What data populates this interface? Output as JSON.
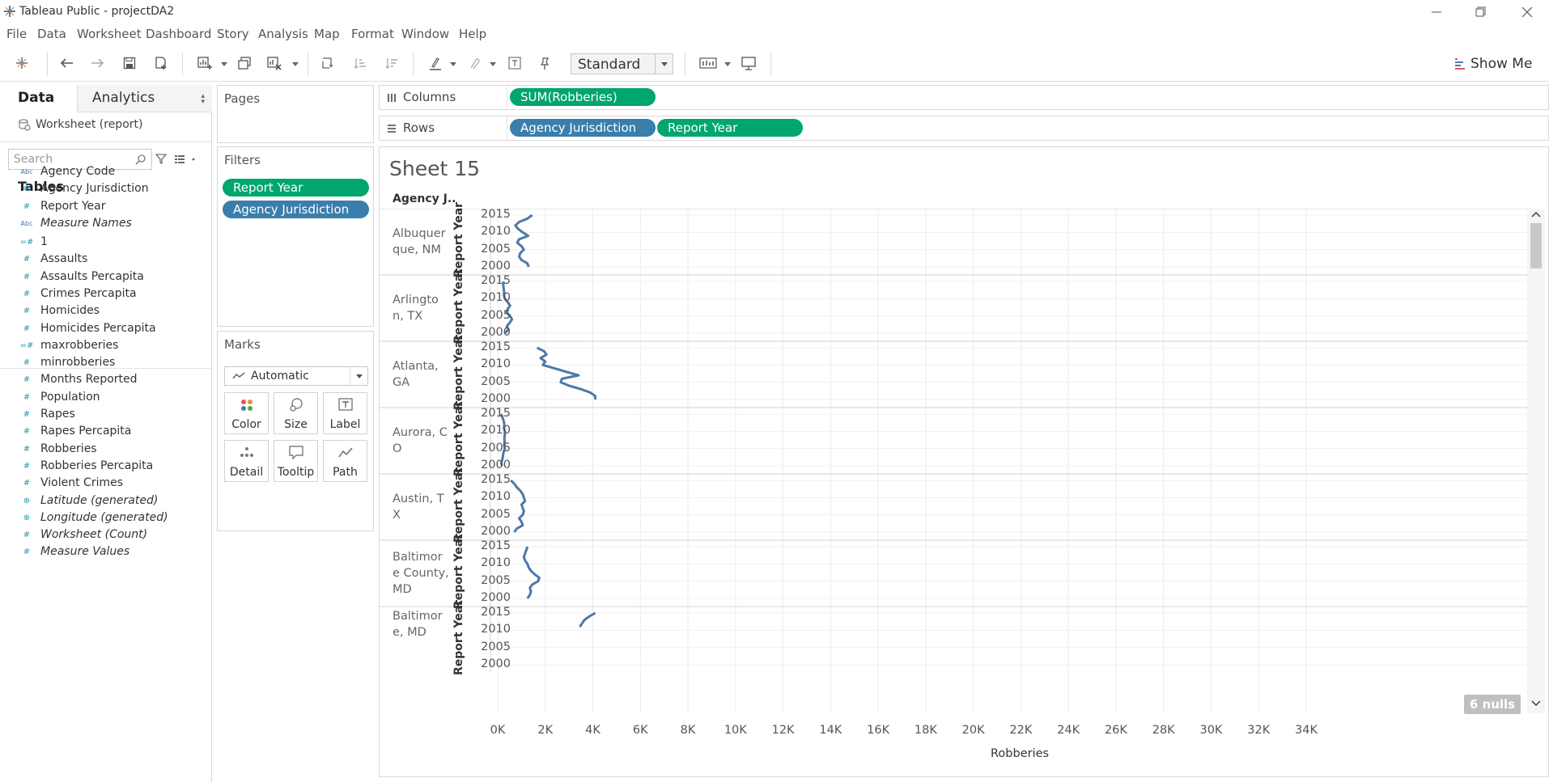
{
  "window": {
    "title": "Tableau Public - projectDA2",
    "controls": [
      "minimize",
      "restore",
      "close"
    ]
  },
  "menu": [
    "File",
    "Data",
    "Worksheet",
    "Dashboard",
    "Story",
    "Analysis",
    "Map",
    "Format",
    "Window",
    "Help"
  ],
  "toolbar": {
    "fit_value": "Standard",
    "show_me_label": "Show Me"
  },
  "data_pane": {
    "tab_data": "Data",
    "tab_analytics": "Analytics",
    "datasource": "Worksheet (report)",
    "search_placeholder": "Search",
    "tables_title": "Tables",
    "dimensions": [
      {
        "icon": "abc",
        "name": "Agency Code",
        "italic": false
      },
      {
        "icon": "globe",
        "name": "Agency Jurisdiction",
        "italic": false
      },
      {
        "icon": "hash",
        "name": "Report Year",
        "italic": false
      },
      {
        "icon": "abc",
        "name": "Measure Names",
        "italic": true
      }
    ],
    "measures": [
      {
        "icon": "calc-hash",
        "name": "1",
        "italic": false
      },
      {
        "icon": "hash",
        "name": "Assaults",
        "italic": false
      },
      {
        "icon": "hash",
        "name": "Assaults Percapita",
        "italic": false
      },
      {
        "icon": "hash",
        "name": "Crimes Percapita",
        "italic": false
      },
      {
        "icon": "hash",
        "name": "Homicides",
        "italic": false
      },
      {
        "icon": "hash",
        "name": "Homicides Percapita",
        "italic": false
      },
      {
        "icon": "calc-hash",
        "name": "maxrobberies",
        "italic": false
      },
      {
        "icon": "hash",
        "name": "minrobberies",
        "italic": false
      },
      {
        "icon": "hash",
        "name": "Months Reported",
        "italic": false
      },
      {
        "icon": "hash",
        "name": "Population",
        "italic": false
      },
      {
        "icon": "hash",
        "name": "Rapes",
        "italic": false
      },
      {
        "icon": "hash",
        "name": "Rapes Percapita",
        "italic": false
      },
      {
        "icon": "hash",
        "name": "Robberies",
        "italic": false
      },
      {
        "icon": "hash",
        "name": "Robberies Percapita",
        "italic": false
      },
      {
        "icon": "hash",
        "name": "Violent Crimes",
        "italic": false
      },
      {
        "icon": "globe",
        "name": "Latitude (generated)",
        "italic": true
      },
      {
        "icon": "globe",
        "name": "Longitude (generated)",
        "italic": true
      },
      {
        "icon": "hash",
        "name": "Worksheet (Count)",
        "italic": true
      },
      {
        "icon": "hash",
        "name": "Measure Values",
        "italic": true
      }
    ]
  },
  "cards": {
    "pages_title": "Pages",
    "filters_title": "Filters",
    "filters": [
      "Report Year",
      "Agency Jurisdiction"
    ],
    "marks_title": "Marks",
    "marks_type": "Automatic",
    "mark_buttons": [
      "Color",
      "Size",
      "Label",
      "Detail",
      "Tooltip",
      "Path"
    ]
  },
  "shelves": {
    "columns_label": "Columns",
    "rows_label": "Rows",
    "columns_pills": [
      "SUM(Robberies)"
    ],
    "rows_pills": [
      "Agency Jurisdiction",
      "Report Year"
    ]
  },
  "view": {
    "sheet_title": "Sheet 15",
    "pane_header": "Agency J..",
    "row_axis_title": "Report Year",
    "nulls_badge": "6 nulls"
  },
  "colors": {
    "green_pill": "#00a66e",
    "blue_pill": "#3a7eac",
    "line": "#4e79a7"
  },
  "chart_data": {
    "type": "line",
    "title": "Sheet 15",
    "xlabel": "Robberies",
    "ylabel": "Report Year",
    "x_ticks": [
      "0K",
      "2K",
      "4K",
      "6K",
      "8K",
      "10K",
      "12K",
      "14K",
      "16K",
      "18K",
      "20K",
      "22K",
      "24K",
      "26K",
      "28K",
      "30K",
      "32K",
      "34K"
    ],
    "xlim": [
      0,
      34000
    ],
    "y_ticks": [
      "2015",
      "2010",
      "2005",
      "2000"
    ],
    "ylim": [
      1999,
      2016
    ],
    "grid": true,
    "panels": [
      {
        "label": "Albuquerque, NM",
        "years": [
          2015,
          2014,
          2013,
          2012,
          2011,
          2010,
          2009,
          2008,
          2007,
          2006,
          2005,
          2004,
          2003,
          2002,
          2001,
          2000
        ],
        "robberies": [
          1450,
          1250,
          900,
          740,
          860,
          1050,
          1280,
          900,
          820,
          1000,
          1100,
          950,
          900,
          1000,
          1250,
          1300
        ]
      },
      {
        "label": "Arlington, TX",
        "years": [
          2015,
          2014,
          2013,
          2012,
          2011,
          2010,
          2009,
          2008,
          2007,
          2006,
          2005,
          2004,
          2003,
          2002,
          2001,
          2000
        ],
        "robberies": [
          240,
          230,
          250,
          270,
          260,
          300,
          420,
          520,
          420,
          380,
          520,
          600,
          500,
          380,
          450,
          300
        ]
      },
      {
        "label": "Atlanta, GA",
        "years": [
          2015,
          2014,
          2013,
          2012,
          2011,
          2010,
          2009,
          2008,
          2007,
          2006,
          2005,
          2004,
          2003,
          2002,
          2001,
          2000
        ],
        "robberies": [
          1650,
          1950,
          2050,
          1800,
          2000,
          1900,
          2400,
          2900,
          3400,
          2700,
          2650,
          3000,
          3500,
          3900,
          4100,
          4100
        ]
      },
      {
        "label": "Aurora, CO",
        "years": [
          2015,
          2014,
          2013,
          2012,
          2011,
          2010,
          2009,
          2008,
          2007,
          2006,
          2005,
          2004,
          2003,
          2002,
          2001,
          2000
        ],
        "robberies": [
          150,
          200,
          250,
          280,
          260,
          300,
          300,
          280,
          290,
          270,
          300,
          250,
          220,
          200,
          150,
          180
        ]
      },
      {
        "label": "Austin, TX",
        "years": [
          2015,
          2014,
          2013,
          2012,
          2011,
          2010,
          2009,
          2008,
          2007,
          2006,
          2005,
          2004,
          2003,
          2002,
          2001,
          2000
        ],
        "robberies": [
          550,
          700,
          800,
          950,
          1050,
          1100,
          1150,
          1000,
          1050,
          1100,
          1050,
          900,
          1000,
          1050,
          800,
          700
        ]
      },
      {
        "label": "Baltimore County, MD",
        "years": [
          2015,
          2014,
          2013,
          2012,
          2011,
          2010,
          2009,
          2008,
          2007,
          2006,
          2005,
          2004,
          2003,
          2002,
          2001,
          2000
        ],
        "robberies": [
          1250,
          1200,
          1150,
          1100,
          1150,
          1250,
          1300,
          1400,
          1550,
          1750,
          1700,
          1450,
          1350,
          1400,
          1350,
          1250
        ]
      },
      {
        "label": "Baltimore, MD",
        "years": [
          2015,
          2014,
          2013,
          2012,
          2011
        ],
        "robberies": [
          4100,
          3850,
          3650,
          3550,
          3450
        ]
      }
    ]
  }
}
